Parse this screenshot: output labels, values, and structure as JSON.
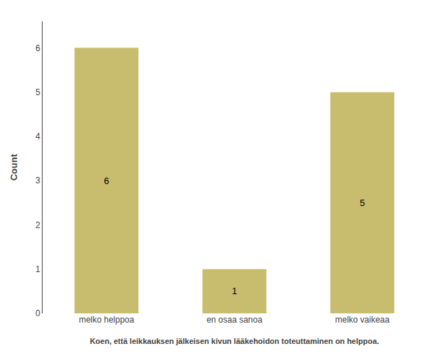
{
  "chart_data": {
    "type": "bar",
    "categories": [
      "melko helppoa",
      "en osaa sanoa",
      "melko vaikeaa"
    ],
    "values": [
      6,
      1,
      5
    ],
    "color": "#C8BC6E",
    "xlabel": "Koen, että leikkauksen jälkeisen kivun lääkehoidon toteuttaminen on helppoa.",
    "ylabel": "Count",
    "ylim": [
      0,
      6.6
    ],
    "yticks": [
      0,
      1,
      2,
      3,
      4,
      5,
      6
    ],
    "grid": false,
    "data_labels": true
  }
}
